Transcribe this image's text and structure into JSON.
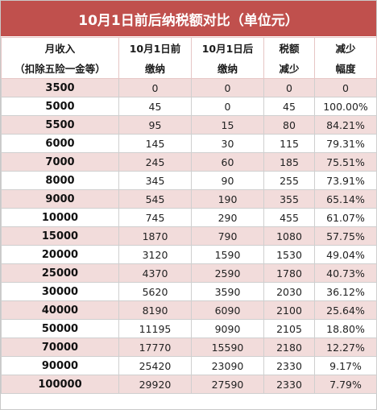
{
  "title": "10月1日前后纳税额对比（单位元）",
  "headers": {
    "col1_line1": "月收入",
    "col1_line2": "（扣除五险一金等）",
    "col2_line1": "10月1日前",
    "col2_line2": "缴纳",
    "col3_line1": "10月1日后",
    "col3_line2": "缴纳",
    "col4_line1": "税额",
    "col4_line2": "减少",
    "col5_line1": "减少",
    "col5_line2": "幅度"
  },
  "rows": [
    {
      "income": "3500",
      "before": "0",
      "after": "0",
      "reduction": "0",
      "rate": "0"
    },
    {
      "income": "5000",
      "before": "45",
      "after": "0",
      "reduction": "45",
      "rate": "100.00%"
    },
    {
      "income": "5500",
      "before": "95",
      "after": "15",
      "reduction": "80",
      "rate": "84.21%"
    },
    {
      "income": "6000",
      "before": "145",
      "after": "30",
      "reduction": "115",
      "rate": "79.31%"
    },
    {
      "income": "7000",
      "before": "245",
      "after": "60",
      "reduction": "185",
      "rate": "75.51%"
    },
    {
      "income": "8000",
      "before": "345",
      "after": "90",
      "reduction": "255",
      "rate": "73.91%"
    },
    {
      "income": "9000",
      "before": "545",
      "after": "190",
      "reduction": "355",
      "rate": "65.14%"
    },
    {
      "income": "10000",
      "before": "745",
      "after": "290",
      "reduction": "455",
      "rate": "61.07%"
    },
    {
      "income": "15000",
      "before": "1870",
      "after": "790",
      "reduction": "1080",
      "rate": "57.75%"
    },
    {
      "income": "20000",
      "before": "3120",
      "after": "1590",
      "reduction": "1530",
      "rate": "49.04%"
    },
    {
      "income": "25000",
      "before": "4370",
      "after": "2590",
      "reduction": "1780",
      "rate": "40.73%"
    },
    {
      "income": "30000",
      "before": "5620",
      "after": "3590",
      "reduction": "2030",
      "rate": "36.12%"
    },
    {
      "income": "40000",
      "before": "8190",
      "after": "6090",
      "reduction": "2100",
      "rate": "25.64%"
    },
    {
      "income": "50000",
      "before": "11195",
      "after": "9090",
      "reduction": "2105",
      "rate": "18.80%"
    },
    {
      "income": "70000",
      "before": "17770",
      "after": "15590",
      "reduction": "2180",
      "rate": "12.27%"
    },
    {
      "income": "90000",
      "before": "25420",
      "after": "23090",
      "reduction": "2330",
      "rate": "9.17%"
    },
    {
      "income": "100000",
      "before": "29920",
      "after": "27590",
      "reduction": "2330",
      "rate": "7.79%"
    }
  ],
  "colors": {
    "title_bg": "#c0504d",
    "row_band": "#f2dcdb"
  }
}
